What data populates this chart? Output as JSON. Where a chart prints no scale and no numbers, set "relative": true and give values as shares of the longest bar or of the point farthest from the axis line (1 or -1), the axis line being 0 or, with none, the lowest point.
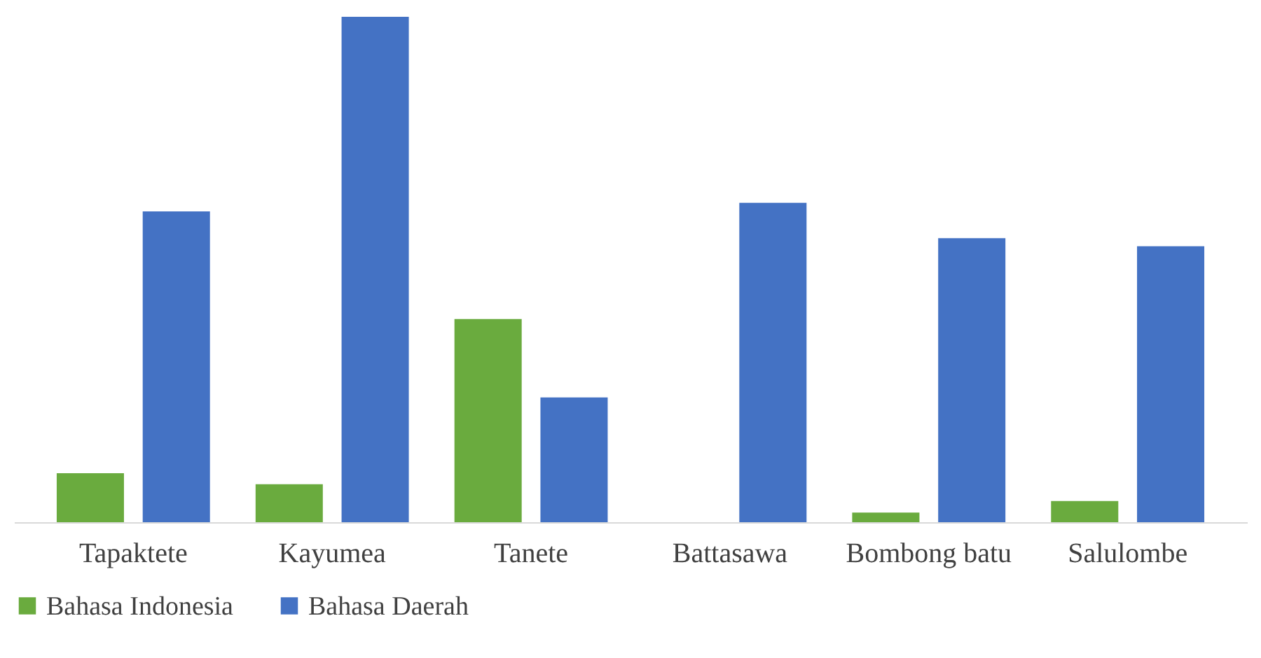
{
  "chart_data": {
    "type": "bar",
    "relative": true,
    "categories": [
      "Tapaktete",
      "Kayumea",
      "Tanete",
      "Battasawa",
      "Bombong batu",
      "Salulombe"
    ],
    "series": [
      {
        "name": "Bahasa Indonesia",
        "color": "#6aab3e",
        "values": [
          0.097,
          0.075,
          0.402,
          0,
          0.019,
          0.042
        ]
      },
      {
        "name": "Bahasa Daerah",
        "color": "#4472c4",
        "values": [
          0.615,
          1,
          0.247,
          0.632,
          0.562,
          0.546
        ]
      }
    ],
    "legend": "bottom",
    "grid": false
  }
}
